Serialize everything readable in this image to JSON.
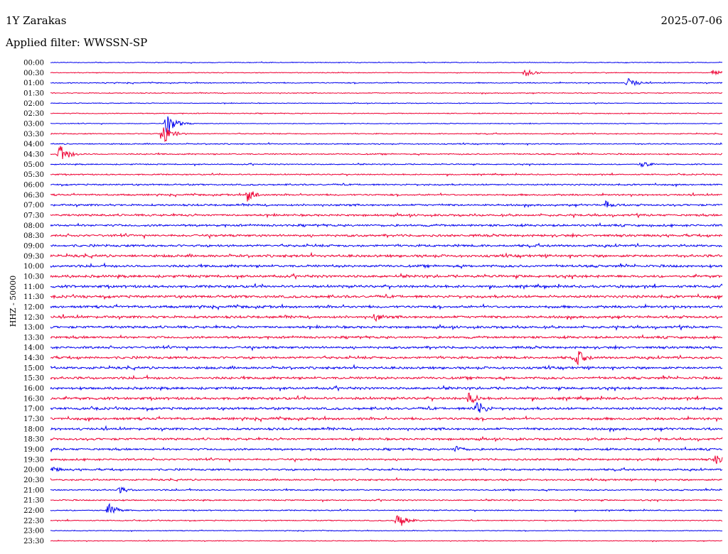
{
  "header": {
    "station": "1Y Zarakas",
    "date": "2025-07-06",
    "filter_label": "Applied filter: WWSSN-SP"
  },
  "channel_label": "HHZ - 50000",
  "colors": {
    "even": "#0000ee",
    "odd": "#ee0033"
  },
  "chart_data": {
    "type": "line",
    "title": "1Y Zarakas",
    "subtitle": "Applied filter: WWSSN-SP",
    "ylabel": "HHZ - 50000",
    "xlabel": "",
    "rows": [
      "00:00",
      "00:30",
      "01:00",
      "01:30",
      "02:00",
      "02:30",
      "03:00",
      "03:30",
      "04:00",
      "04:30",
      "05:00",
      "05:30",
      "06:00",
      "06:30",
      "07:00",
      "07:30",
      "08:00",
      "08:30",
      "09:00",
      "09:30",
      "10:00",
      "10:30",
      "11:00",
      "11:30",
      "12:00",
      "12:30",
      "13:00",
      "13:30",
      "14:00",
      "14:30",
      "15:00",
      "15:30",
      "16:00",
      "16:30",
      "17:00",
      "17:30",
      "18:00",
      "18:30",
      "19:00",
      "19:30",
      "20:00",
      "20:30",
      "21:00",
      "21:30",
      "22:00",
      "22:30",
      "23:00",
      "23:30"
    ],
    "noise_level": [
      0.6,
      0.6,
      0.8,
      0.7,
      0.6,
      0.7,
      0.6,
      0.8,
      0.9,
      1.0,
      0.9,
      1.0,
      1.2,
      1.3,
      1.5,
      1.6,
      1.7,
      1.8,
      1.8,
      2.0,
      1.9,
      2.0,
      2.0,
      2.0,
      1.9,
      1.9,
      1.8,
      1.8,
      1.8,
      1.9,
      1.9,
      1.9,
      1.9,
      2.0,
      1.9,
      1.9,
      1.8,
      1.7,
      1.6,
      1.5,
      1.5,
      1.3,
      1.1,
      1.0,
      0.9,
      0.8,
      0.6,
      0.6
    ],
    "events": [
      {
        "row": 1,
        "minute": 21.2,
        "amp": 6
      },
      {
        "row": 1,
        "minute": 29.6,
        "amp": 4
      },
      {
        "row": 2,
        "minute": 25.8,
        "amp": 8
      },
      {
        "row": 6,
        "minute": 5.2,
        "amp": 15
      },
      {
        "row": 7,
        "minute": 5.0,
        "amp": 16
      },
      {
        "row": 9,
        "minute": 0.4,
        "amp": 14
      },
      {
        "row": 10,
        "minute": 26.4,
        "amp": 5
      },
      {
        "row": 13,
        "minute": 8.8,
        "amp": 10
      },
      {
        "row": 14,
        "minute": 24.8,
        "amp": 6
      },
      {
        "row": 25,
        "minute": 14.5,
        "amp": 7
      },
      {
        "row": 29,
        "minute": 23.5,
        "amp": 12
      },
      {
        "row": 33,
        "minute": 18.7,
        "amp": 10
      },
      {
        "row": 34,
        "minute": 19.0,
        "amp": 14
      },
      {
        "row": 38,
        "minute": 18.1,
        "amp": 6
      },
      {
        "row": 39,
        "minute": 29.7,
        "amp": 7
      },
      {
        "row": 40,
        "minute": 0.1,
        "amp": 5
      },
      {
        "row": 42,
        "minute": 3.1,
        "amp": 5
      },
      {
        "row": 44,
        "minute": 2.6,
        "amp": 10
      },
      {
        "row": 45,
        "minute": 15.5,
        "amp": 12
      }
    ]
  }
}
